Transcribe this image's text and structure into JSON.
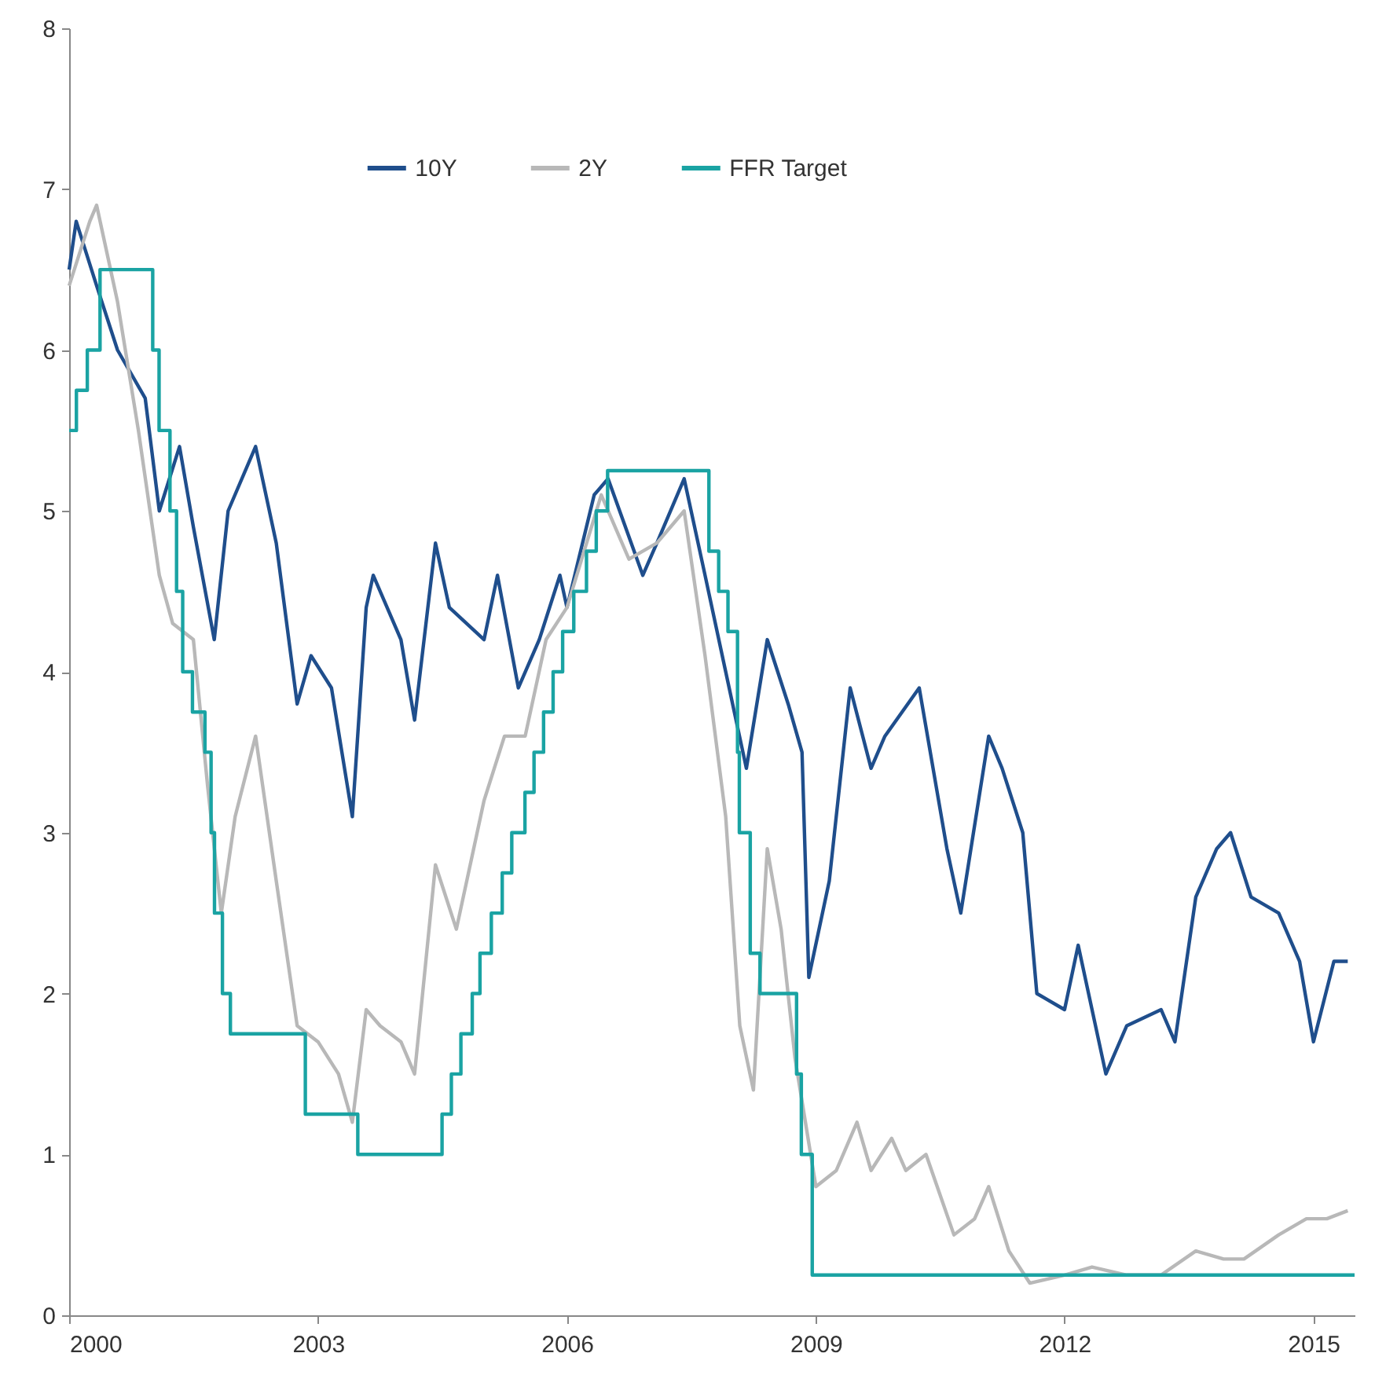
{
  "chart_data": {
    "type": "line",
    "xlim": [
      "2000-01-01",
      "2015-07-01"
    ],
    "xticks": [
      "2000",
      "2003",
      "2006",
      "2009",
      "2012",
      "2015"
    ],
    "ylim": [
      0,
      8
    ],
    "yticks": [
      0,
      1,
      2,
      3,
      4,
      5,
      6,
      7,
      8
    ],
    "grid": false,
    "legend": "top",
    "line_style": "solid",
    "marker": "none",
    "series": [
      {
        "name": "10Y",
        "color": "#1f4e8c",
        "type": "line",
        "x": [
          "2000-01",
          "2000-02",
          "2000-05",
          "2000-08",
          "2000-12",
          "2001-02",
          "2001-05",
          "2001-07",
          "2001-10",
          "2001-12",
          "2002-04",
          "2002-07",
          "2002-10",
          "2002-12",
          "2003-03",
          "2003-06",
          "2003-08",
          "2003-09",
          "2004-01",
          "2004-03",
          "2004-06",
          "2004-08",
          "2005-01",
          "2005-03",
          "2005-06",
          "2005-09",
          "2005-12",
          "2006-01",
          "2006-05",
          "2006-07",
          "2006-12",
          "2007-02",
          "2007-06",
          "2007-09",
          "2007-12",
          "2008-03",
          "2008-06",
          "2008-09",
          "2008-11",
          "2008-12",
          "2009-03",
          "2009-06",
          "2009-09",
          "2009-11",
          "2010-04",
          "2010-08",
          "2010-10",
          "2011-02",
          "2011-04",
          "2011-07",
          "2011-09",
          "2012-01",
          "2012-03",
          "2012-07",
          "2012-10",
          "2013-03",
          "2013-05",
          "2013-08",
          "2013-11",
          "2014-01",
          "2014-04",
          "2014-08",
          "2014-11",
          "2015-01",
          "2015-04",
          "2015-06"
        ],
        "values": [
          6.5,
          6.8,
          6.4,
          6.0,
          5.7,
          5.0,
          5.4,
          4.9,
          4.2,
          5.0,
          5.4,
          4.8,
          3.8,
          4.1,
          3.9,
          3.1,
          4.4,
          4.6,
          4.2,
          3.7,
          4.8,
          4.4,
          4.2,
          4.6,
          3.9,
          4.2,
          4.6,
          4.4,
          5.1,
          5.2,
          4.6,
          4.8,
          5.2,
          4.6,
          4.0,
          3.4,
          4.2,
          3.8,
          3.5,
          2.1,
          2.7,
          3.9,
          3.4,
          3.6,
          3.9,
          2.9,
          2.5,
          3.6,
          3.4,
          3.0,
          2.0,
          1.9,
          2.3,
          1.5,
          1.8,
          1.9,
          1.7,
          2.6,
          2.9,
          3.0,
          2.6,
          2.5,
          2.2,
          1.7,
          2.2,
          2.2
        ]
      },
      {
        "name": "2Y",
        "color": "#b8b8b8",
        "type": "line",
        "x": [
          "2000-01",
          "2000-04",
          "2000-05",
          "2000-08",
          "2000-11",
          "2001-02",
          "2001-04",
          "2001-07",
          "2001-09",
          "2001-11",
          "2002-01",
          "2002-04",
          "2002-07",
          "2002-10",
          "2003-01",
          "2003-04",
          "2003-06",
          "2003-08",
          "2003-10",
          "2004-01",
          "2004-03",
          "2004-06",
          "2004-09",
          "2005-01",
          "2005-04",
          "2005-07",
          "2005-10",
          "2006-01",
          "2006-06",
          "2006-10",
          "2007-02",
          "2007-06",
          "2007-09",
          "2007-12",
          "2008-02",
          "2008-04",
          "2008-06",
          "2008-08",
          "2008-10",
          "2009-01",
          "2009-04",
          "2009-07",
          "2009-09",
          "2009-12",
          "2010-02",
          "2010-05",
          "2010-09",
          "2010-12",
          "2011-02",
          "2011-05",
          "2011-08",
          "2012-01",
          "2012-05",
          "2012-10",
          "2013-03",
          "2013-08",
          "2013-12",
          "2014-03",
          "2014-08",
          "2014-12",
          "2015-03",
          "2015-06"
        ],
        "values": [
          6.4,
          6.8,
          6.9,
          6.3,
          5.5,
          4.6,
          4.3,
          4.2,
          3.3,
          2.5,
          3.1,
          3.6,
          2.7,
          1.8,
          1.7,
          1.5,
          1.2,
          1.9,
          1.8,
          1.7,
          1.5,
          2.8,
          2.4,
          3.2,
          3.6,
          3.6,
          4.2,
          4.4,
          5.1,
          4.7,
          4.8,
          5.0,
          4.1,
          3.1,
          1.8,
          1.4,
          2.9,
          2.4,
          1.6,
          0.8,
          0.9,
          1.2,
          0.9,
          1.1,
          0.9,
          1.0,
          0.5,
          0.6,
          0.8,
          0.4,
          0.2,
          0.25,
          0.3,
          0.25,
          0.25,
          0.4,
          0.35,
          0.35,
          0.5,
          0.6,
          0.6,
          0.65
        ]
      },
      {
        "name": "FFR Target",
        "color": "#1aa3a3",
        "type": "step",
        "x": [
          "2000-01-01",
          "2000-02-02",
          "2000-03-21",
          "2000-05-16",
          "2001-01-03",
          "2001-01-31",
          "2001-03-20",
          "2001-04-18",
          "2001-05-15",
          "2001-06-27",
          "2001-08-21",
          "2001-09-17",
          "2001-10-02",
          "2001-11-06",
          "2001-12-11",
          "2002-11-06",
          "2003-06-25",
          "2004-06-30",
          "2004-08-10",
          "2004-09-21",
          "2004-11-10",
          "2004-12-14",
          "2005-02-02",
          "2005-03-22",
          "2005-05-03",
          "2005-06-30",
          "2005-08-09",
          "2005-09-20",
          "2005-11-01",
          "2005-12-13",
          "2006-01-31",
          "2006-03-28",
          "2006-05-10",
          "2006-06-29",
          "2007-09-18",
          "2007-10-31",
          "2007-12-11",
          "2008-01-22",
          "2008-01-30",
          "2008-03-18",
          "2008-04-30",
          "2008-10-08",
          "2008-10-29",
          "2008-12-16",
          "2015-07-01"
        ],
        "values": [
          5.5,
          5.75,
          6.0,
          6.5,
          6.0,
          5.5,
          5.0,
          4.5,
          4.0,
          3.75,
          3.5,
          3.0,
          2.5,
          2.0,
          1.75,
          1.25,
          1.0,
          1.25,
          1.5,
          1.75,
          2.0,
          2.25,
          2.5,
          2.75,
          3.0,
          3.25,
          3.5,
          3.75,
          4.0,
          4.25,
          4.5,
          4.75,
          5.0,
          5.25,
          4.75,
          4.5,
          4.25,
          3.5,
          3.0,
          2.25,
          2.0,
          1.5,
          1.0,
          0.25,
          0.25
        ]
      }
    ]
  }
}
